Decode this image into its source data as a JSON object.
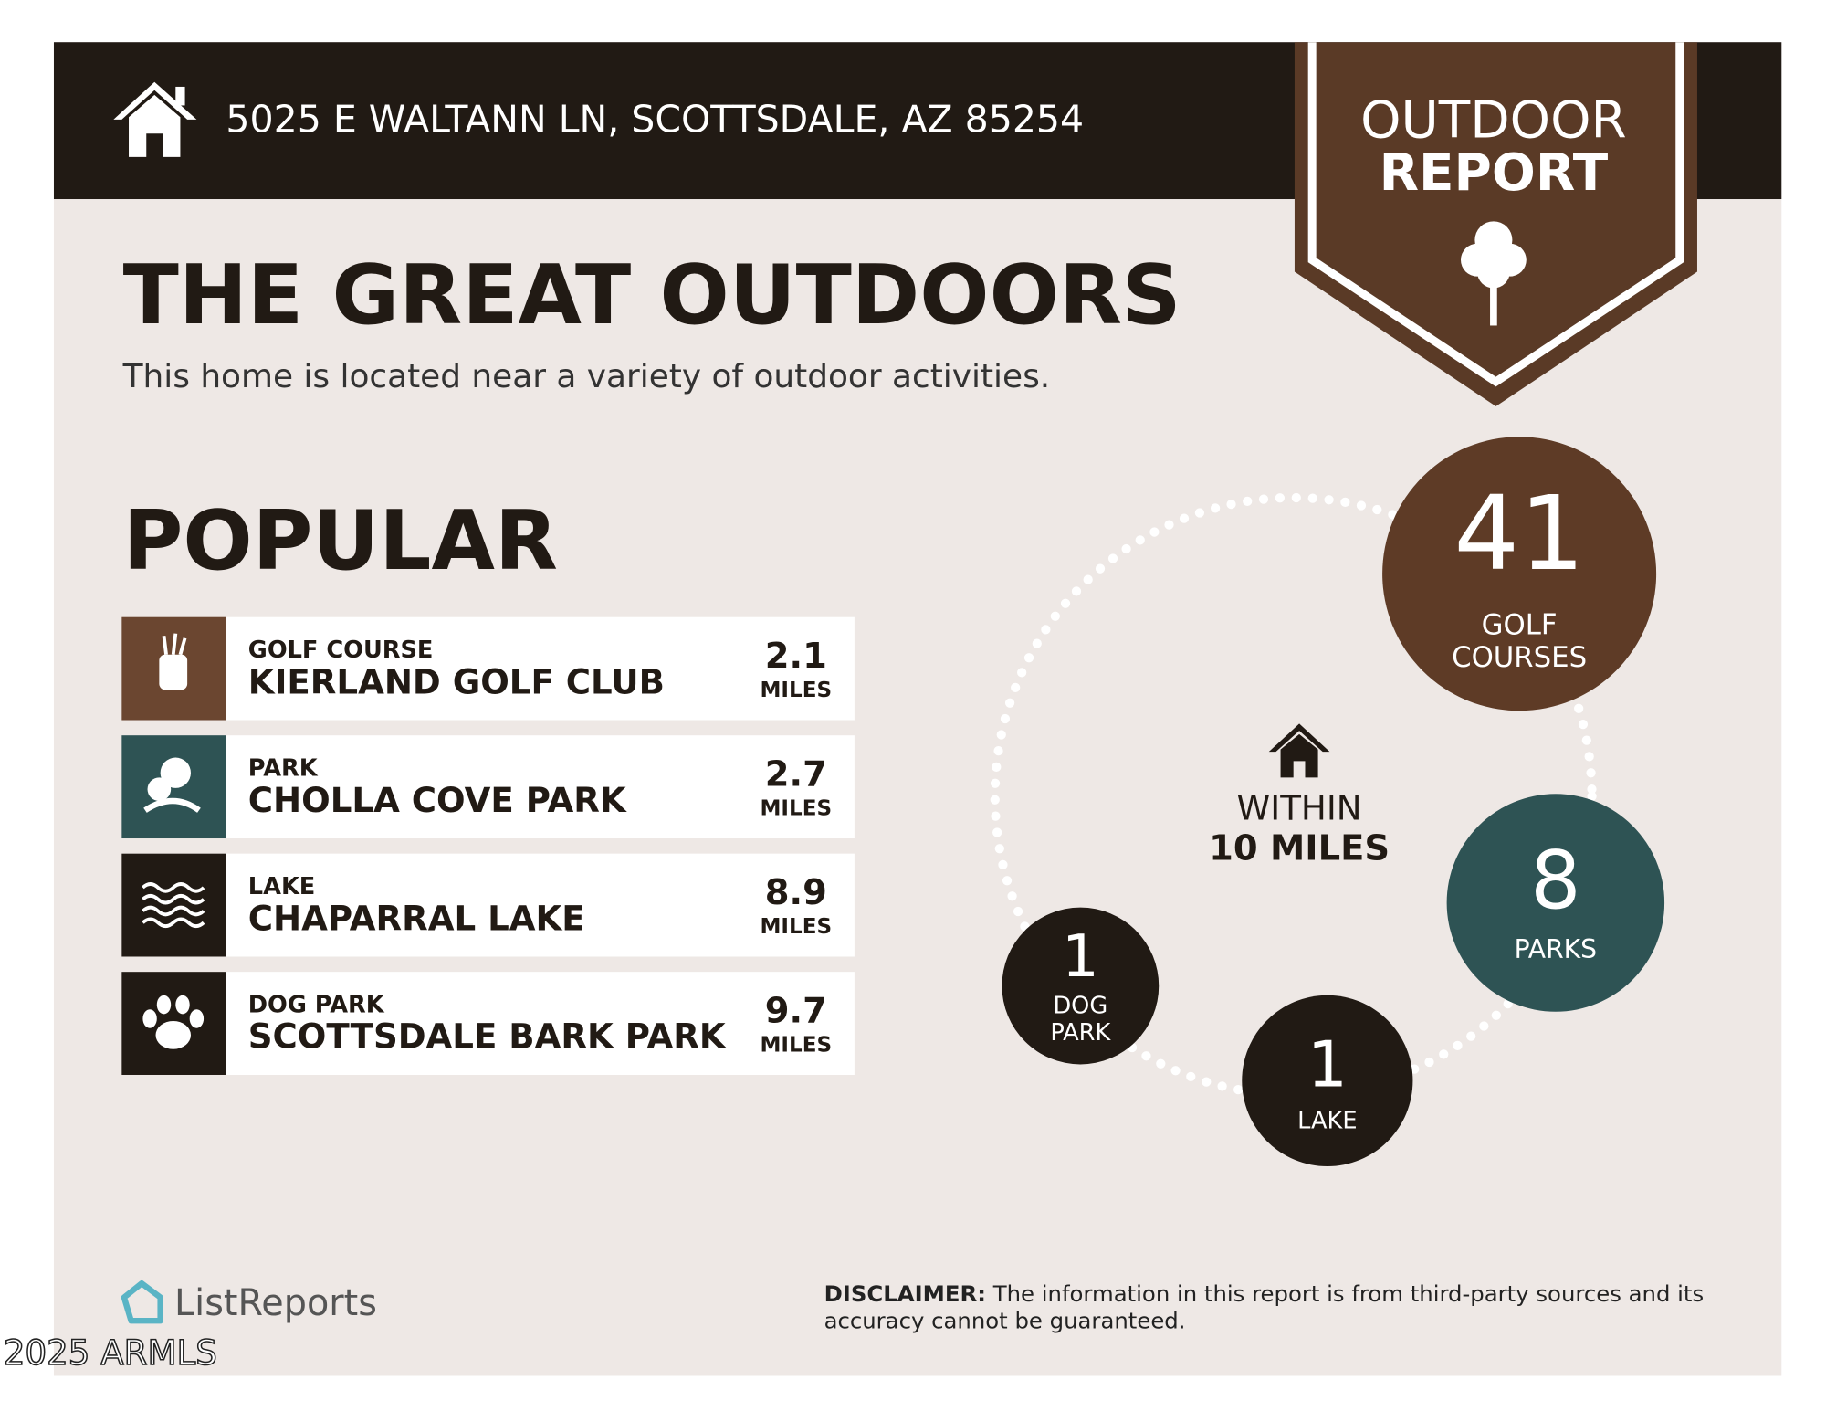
{
  "header": {
    "address": "5025 E WALTANN LN, SCOTTSDALE, AZ 85254",
    "badge_line1": "OUTDOOR",
    "badge_line2": "REPORT"
  },
  "intro": {
    "title": "THE GREAT OUTDOORS",
    "subtitle": "This home is located near a variety of outdoor activities."
  },
  "popular": {
    "heading": "POPULAR",
    "items": [
      {
        "category": "GOLF COURSE",
        "name": "KIERLAND GOLF CLUB",
        "distance": 2.1,
        "unit": "MILES"
      },
      {
        "category": "PARK",
        "name": "CHOLLA COVE PARK",
        "distance": 2.7,
        "unit": "MILES"
      },
      {
        "category": "LAKE",
        "name": "CHAPARRAL LAKE",
        "distance": 8.9,
        "unit": "MILES"
      },
      {
        "category": "DOG PARK",
        "name": "SCOTTSDALE BARK PARK",
        "distance": 9.7,
        "unit": "MILES"
      }
    ]
  },
  "summary": {
    "center_line1": "WITHIN",
    "center_line2": "10 MILES",
    "counts": [
      {
        "count": 41,
        "label_lines": [
          "GOLF",
          "COURSES"
        ]
      },
      {
        "count": 8,
        "label_lines": [
          "PARKS"
        ]
      },
      {
        "count": 1,
        "label_lines": [
          "LAKE"
        ]
      },
      {
        "count": 1,
        "label_lines": [
          "DOG",
          "PARK"
        ]
      }
    ]
  },
  "footer": {
    "brand": "ListReports",
    "disclaimer_label": "DISCLAIMER:",
    "disclaimer_lines": [
      "The information in this report is from third-party sources and its",
      "accuracy cannot be guaranteed."
    ],
    "watermark": "2025 ARMLS"
  }
}
